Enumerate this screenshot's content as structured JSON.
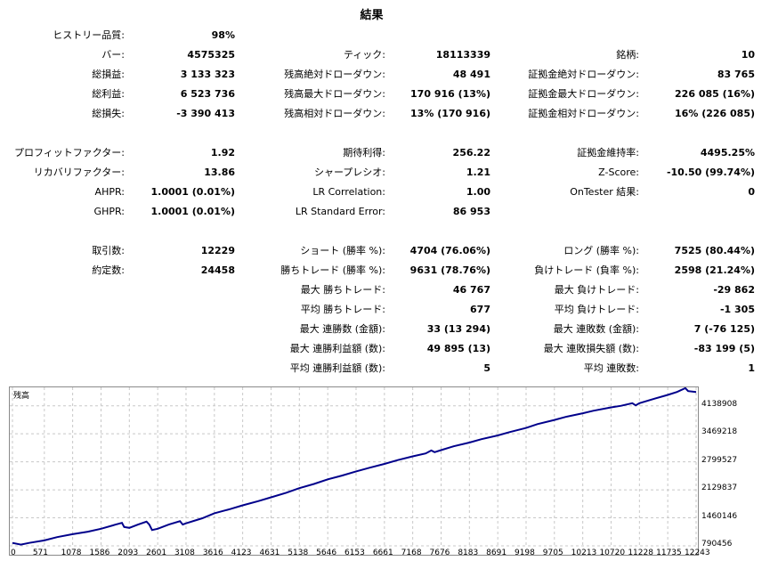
{
  "title": "結果",
  "stats": [
    [
      {
        "label": "ヒストリー品質:",
        "value": "98%"
      },
      null,
      null
    ],
    [
      {
        "label": "バー:",
        "value": "4575325"
      },
      {
        "label": "ティック:",
        "value": "18113339"
      },
      {
        "label": "銘柄:",
        "value": "10"
      }
    ],
    [
      {
        "label": "総損益:",
        "value": "3 133 323"
      },
      {
        "label": "残高絶対ドローダウン:",
        "value": "48 491"
      },
      {
        "label": "証拠金絶対ドローダウン:",
        "value": "83 765"
      }
    ],
    [
      {
        "label": "総利益:",
        "value": "6 523 736"
      },
      {
        "label": "残高最大ドローダウン:",
        "value": "170 916 (13%)"
      },
      {
        "label": "証拠金最大ドローダウン:",
        "value": "226 085 (16%)"
      }
    ],
    [
      {
        "label": "総損失:",
        "value": "-3 390 413"
      },
      {
        "label": "残高相対ドローダウン:",
        "value": "13% (170 916)"
      },
      {
        "label": "証拠金相対ドローダウン:",
        "value": "16% (226 085)"
      }
    ],
    null,
    [
      {
        "label": "プロフィットファクター:",
        "value": "1.92"
      },
      {
        "label": "期待利得:",
        "value": "256.22"
      },
      {
        "label": "証拠金維持率:",
        "value": "4495.25%"
      }
    ],
    [
      {
        "label": "リカバリファクター:",
        "value": "13.86"
      },
      {
        "label": "シャープレシオ:",
        "value": "1.21"
      },
      {
        "label": "Z-Score:",
        "value": "-10.50 (99.74%)"
      }
    ],
    [
      {
        "label": "AHPR:",
        "value": "1.0001 (0.01%)"
      },
      {
        "label": "LR Correlation:",
        "value": "1.00"
      },
      {
        "label": "OnTester 結果:",
        "value": "0"
      }
    ],
    [
      {
        "label": "GHPR:",
        "value": "1.0001 (0.01%)"
      },
      {
        "label": "LR Standard Error:",
        "value": "86 953"
      },
      null
    ],
    null,
    [
      {
        "label": "取引数:",
        "value": "12229"
      },
      {
        "label": "ショート (勝率 %):",
        "value": "4704 (76.06%)"
      },
      {
        "label": "ロング (勝率 %):",
        "value": "7525 (80.44%)"
      }
    ],
    [
      {
        "label": "約定数:",
        "value": "24458"
      },
      {
        "label": "勝ちトレード (勝率 %):",
        "value": "9631 (78.76%)"
      },
      {
        "label": "負けトレード (負率 %):",
        "value": "2598 (21.24%)"
      }
    ],
    [
      null,
      {
        "label": "最大 勝ちトレード:",
        "value": "46 767"
      },
      {
        "label": "最大 負けトレード:",
        "value": "-29 862"
      }
    ],
    [
      null,
      {
        "label": "平均 勝ちトレード:",
        "value": "677"
      },
      {
        "label": "平均 負けトレード:",
        "value": "-1 305"
      }
    ],
    [
      null,
      {
        "label": "最大 連勝数 (金額):",
        "value": "33 (13 294)"
      },
      {
        "label": "最大 連敗数 (金額):",
        "value": "7 (-76 125)"
      }
    ],
    [
      null,
      {
        "label": "最大 連勝利益額 (数):",
        "value": "49 895 (13)"
      },
      {
        "label": "最大 連敗損失額 (数):",
        "value": "-83 199 (5)"
      }
    ],
    [
      null,
      {
        "label": "平均 連勝利益額 (数):",
        "value": "5"
      },
      {
        "label": "平均 連敗数:",
        "value": "1"
      }
    ]
  ],
  "chart_data": {
    "type": "line",
    "series": [
      {
        "name": "残高",
        "color": "#00008b",
        "x": [
          0,
          150,
          300,
          571,
          800,
          1078,
          1350,
          1586,
          1850,
          1960,
          2000,
          2093,
          2250,
          2400,
          2450,
          2500,
          2601,
          2800,
          3000,
          3050,
          3108,
          3400,
          3616,
          3900,
          4123,
          4400,
          4631,
          4900,
          5138,
          5400,
          5646,
          5900,
          6153,
          6400,
          6661,
          6900,
          7168,
          7400,
          7500,
          7560,
          7676,
          7900,
          8183,
          8400,
          8691,
          8900,
          9198,
          9400,
          9705,
          9900,
          10213,
          10400,
          10720,
          10900,
          11100,
          11160,
          11228,
          11500,
          11735,
          11900,
          12050,
          12100,
          12243
        ],
        "y": [
          860000,
          820000,
          860000,
          920000,
          1000000,
          1070000,
          1130000,
          1200000,
          1300000,
          1340000,
          1240000,
          1220000,
          1300000,
          1370000,
          1300000,
          1170000,
          1200000,
          1300000,
          1380000,
          1300000,
          1330000,
          1450000,
          1570000,
          1670000,
          1760000,
          1860000,
          1950000,
          2060000,
          2170000,
          2270000,
          2380000,
          2470000,
          2570000,
          2660000,
          2750000,
          2840000,
          2930000,
          3000000,
          3070000,
          3030000,
          3080000,
          3170000,
          3260000,
          3340000,
          3430000,
          3510000,
          3610000,
          3700000,
          3800000,
          3870000,
          3960000,
          4020000,
          4100000,
          4140000,
          4200000,
          4150000,
          4200000,
          4310000,
          4400000,
          4470000,
          4560000,
          4490000,
          4470000
        ]
      }
    ],
    "xticks": [
      "0",
      "571",
      "1078",
      "1586",
      "2093",
      "2601",
      "3108",
      "3616",
      "4123",
      "4631",
      "5138",
      "5646",
      "6153",
      "6661",
      "7168",
      "7676",
      "8183",
      "8691",
      "9198",
      "9705",
      "10213",
      "10720",
      "11228",
      "11735",
      "12243"
    ],
    "yticks": [
      "790456",
      "1460146",
      "2129837",
      "2799527",
      "3469218",
      "4138908"
    ],
    "xlim": [
      0,
      12243
    ],
    "ylim": [
      790456,
      4580000
    ],
    "grid": true,
    "grid_color": "#c8c8c8"
  }
}
